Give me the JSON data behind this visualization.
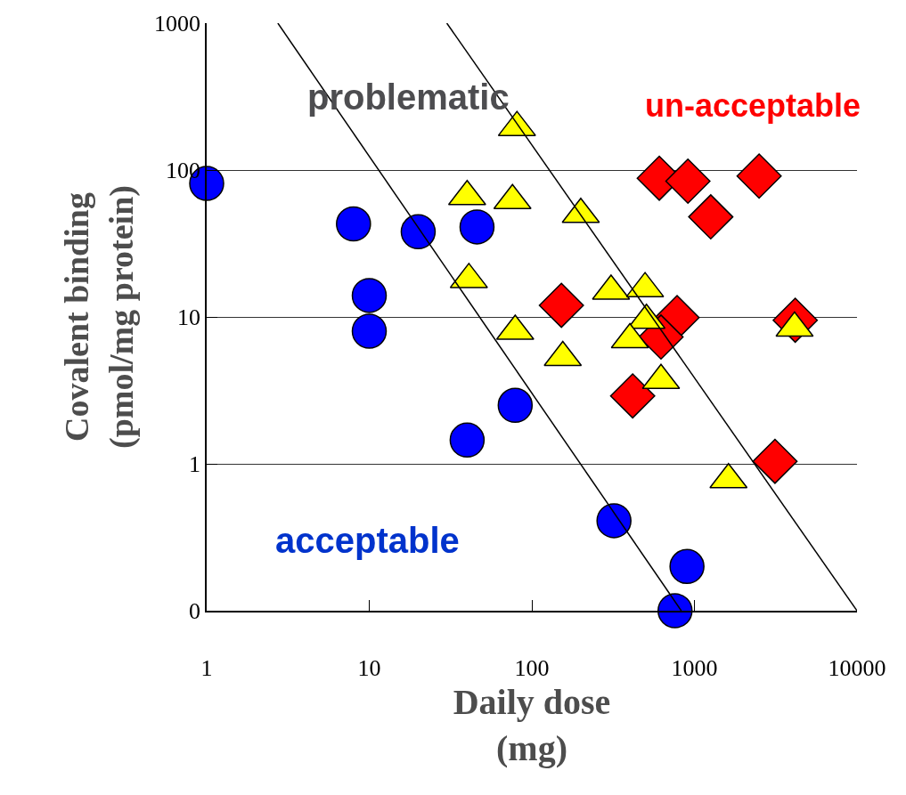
{
  "chart_data": {
    "type": "scatter",
    "xlabel": "Daily dose\n(mg)",
    "ylabel": "Covalent binding\n(pmol/mg protein)",
    "log": "xy",
    "grid": "y",
    "xlim": [
      1,
      10000
    ],
    "xticks": [
      1,
      10,
      100,
      1000,
      10000
    ],
    "ylim": [
      0.1,
      1000
    ],
    "yticks": [
      {
        "value": 0.1,
        "label": "0"
      },
      1,
      10,
      100,
      1000
    ],
    "series": [
      {
        "marker": "circle",
        "color": "#0000ff",
        "x": [
          1,
          8,
          20,
          46,
          10,
          10,
          40,
          79,
          320,
          900,
          760
        ],
        "values": [
          81,
          43,
          38,
          41,
          14,
          8,
          1.45,
          2.5,
          0.41,
          0.2,
          0.1
        ]
      },
      {
        "marker": "diamond",
        "color": "#ff0000",
        "x": [
          608,
          912,
          1260,
          2500,
          152,
          782,
          623,
          417,
          3130,
          4170
        ],
        "values": [
          88,
          84,
          48,
          91,
          12,
          9.9,
          7.3,
          2.9,
          1.04,
          9.5
        ]
      },
      {
        "marker": "triangle",
        "color": "#ffff00",
        "x": [
          81,
          40,
          76,
          200,
          41,
          79,
          155,
          307,
          497,
          507,
          401,
          623,
          4130,
          1620
        ],
        "values": [
          195,
          66,
          62,
          50,
          18,
          8,
          5.3,
          15,
          15.6,
          9.5,
          7,
          3.7,
          8.4,
          0.78
        ]
      },
      {
        "type": "line",
        "marker": "none",
        "color": "#000000",
        "x": [
          2.74,
          830
        ],
        "values": [
          1000,
          0.1
        ]
      },
      {
        "type": "line",
        "marker": "none",
        "color": "#000000",
        "x": [
          30,
          10000
        ],
        "values": [
          1000,
          0.1
        ]
      }
    ],
    "annotations": [
      "problematic",
      "un-acceptable",
      "acceptable"
    ]
  }
}
